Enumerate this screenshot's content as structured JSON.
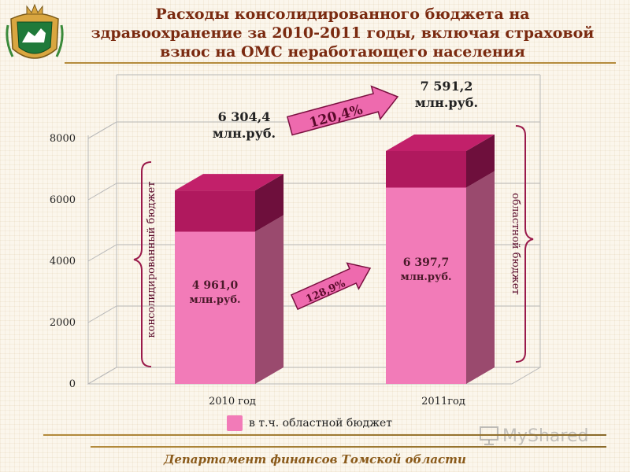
{
  "header": {
    "title_lines": [
      "Расходы консолидированного бюджета на",
      "здравоохранение за 2010-2011 годы, включая страховой",
      "взнос на ОМС неработающего населения"
    ]
  },
  "footer": {
    "department": "Департамент финансов Томской области"
  },
  "legend": {
    "label": "в т.ч. областной бюджет"
  },
  "watermark": {
    "text": "MyShared"
  },
  "colors": {
    "regional_front": "#f27bb8",
    "regional_side": "#9a4a6e",
    "total_front": "#b0195e",
    "total_side": "#6e0f3c",
    "top_face": "#c2206a",
    "title": "#7a2a10",
    "arrow": "#ee6aae"
  },
  "chart_data": {
    "type": "bar",
    "categories": [
      "2010 год",
      "2011год"
    ],
    "series": [
      {
        "name": "в т.ч. областной бюджет",
        "values": [
          4961.0,
          6397.7
        ]
      },
      {
        "values": [
          6304.4,
          7591.2
        ]
      }
    ],
    "yticks": [
      "0",
      "2000",
      "4000",
      "6000",
      "8000"
    ],
    "ylim": [
      0,
      8000
    ],
    "total_labels": [
      [
        "6 304,4",
        "млн.руб."
      ],
      [
        "7 591,2",
        "млн.руб."
      ]
    ],
    "regional_labels": [
      [
        "4 961,0",
        "млн.руб."
      ],
      [
        "6 397,7",
        "млн.руб."
      ]
    ],
    "growth_labels": {
      "total": "120,4%",
      "regional": "128,9%"
    },
    "bracket_labels": {
      "left": "консолидированный бюджет",
      "right": "областной бюджет"
    },
    "grid": true
  }
}
